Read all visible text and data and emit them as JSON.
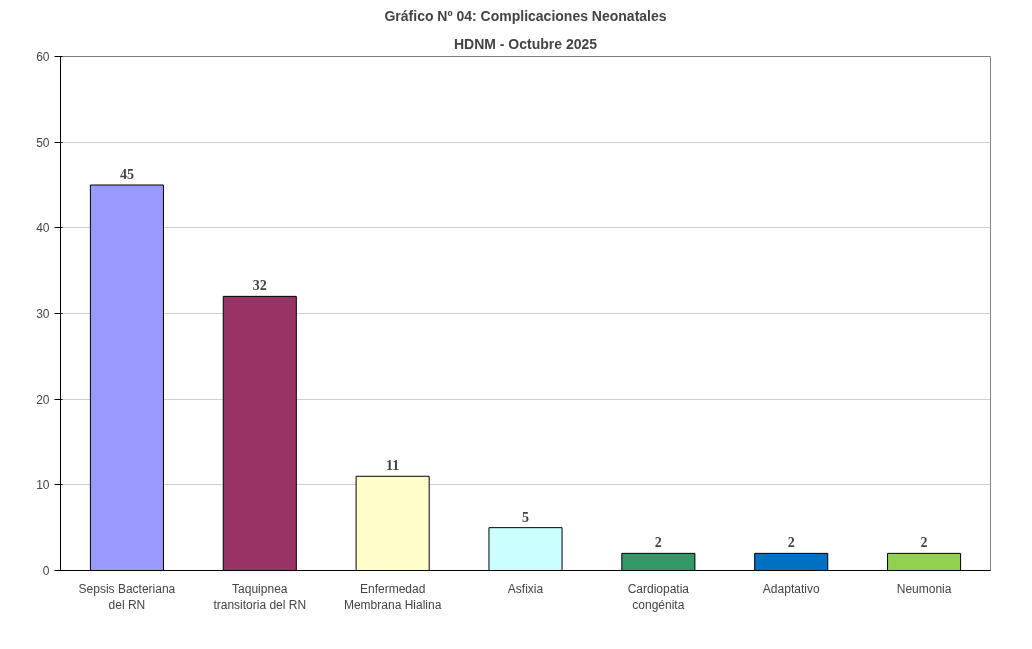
{
  "chart_data": {
    "type": "bar",
    "title": "Gráfico Nº 04: Complicaciones Neonatales",
    "subtitle": "HDNM - Octubre 2025",
    "categories": [
      "Sepsis Bacteriana del RN",
      "Taquipnea transitoria del RN",
      "Enfermedad Membrana Hialina",
      "Asfixia",
      "Cardiopatia congénita",
      "Adaptativo",
      "Neumonia"
    ],
    "values": [
      45,
      32,
      11,
      5,
      2,
      2,
      2
    ],
    "colors": [
      "#9999ff",
      "#993366",
      "#ffffcc",
      "#ccffff",
      "#339966",
      "#0070c0",
      "#92d050"
    ],
    "ylim": [
      0,
      60
    ],
    "yticks": [
      0,
      10,
      20,
      30,
      40,
      50,
      60
    ],
    "grid": "y",
    "data_labels": true
  }
}
